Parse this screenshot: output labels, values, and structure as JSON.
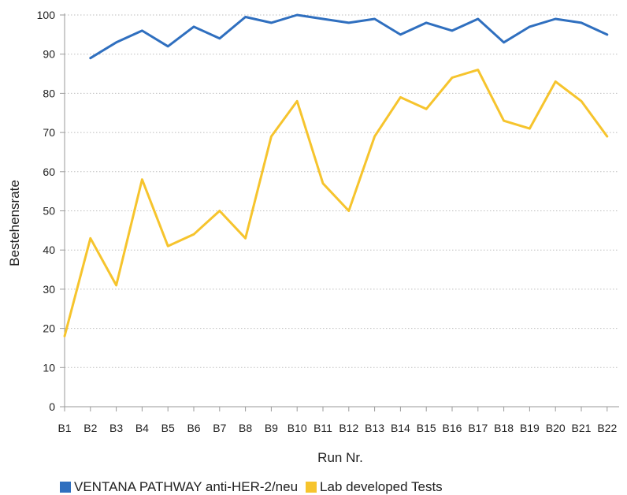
{
  "chart_data": {
    "type": "line",
    "xlabel": "Run Nr.",
    "ylabel": "Bestehensrate",
    "ylim": [
      0,
      100
    ],
    "yticks": [
      0,
      10,
      20,
      30,
      40,
      50,
      60,
      70,
      80,
      90,
      100
    ],
    "grid": "horizontal dotted",
    "legend_placement": "bottom",
    "categories": [
      "B1",
      "B2",
      "B3",
      "B4",
      "B5",
      "B6",
      "B7",
      "B8",
      "B9",
      "B10",
      "B11",
      "B12",
      "B13",
      "B14",
      "B15",
      "B16",
      "B17",
      "B18",
      "B19",
      "B20",
      "B21",
      "B22"
    ],
    "series": [
      {
        "name": "VENTANA PATHWAY anti-HER-2/neu",
        "color": "#2f6fbf",
        "values": [
          null,
          89,
          93,
          96,
          92,
          97,
          94,
          99.5,
          98,
          100,
          99,
          98,
          99,
          95,
          98,
          96,
          99,
          93,
          97,
          99,
          98,
          95
        ]
      },
      {
        "name": "Lab developed Tests",
        "color": "#f6c42d",
        "values": [
          18,
          43,
          31,
          58,
          41,
          44,
          50,
          43,
          69,
          78,
          57,
          50,
          69,
          79,
          76,
          84,
          86,
          73,
          71,
          83,
          78,
          69
        ]
      }
    ]
  }
}
